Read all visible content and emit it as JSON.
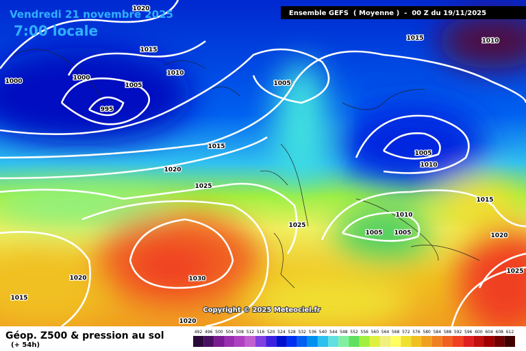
{
  "header": {
    "date": "Vendredi 21 novembre 2025",
    "time": "7:00 locale",
    "run": "Ensemble GEFS  ( Moyenne )  -  00 Z du 19/11/2025"
  },
  "isobars": {
    "labels": [
      "1020",
      "1015",
      "1010",
      "1005",
      "1000",
      "1000",
      "995",
      "1005",
      "1015",
      "1010",
      "1015",
      "1020",
      "1025",
      "1005",
      "1010",
      "1015",
      "1025",
      "1010",
      "1005",
      "1005",
      "1020",
      "1025",
      "1020",
      "1030",
      "1015",
      "1020"
    ]
  },
  "copyright": "Copyright © 2025 Meteociel.fr",
  "footer": {
    "title": "Géop. Z500 & pression au sol",
    "lead": "(+ 54h)"
  },
  "scale": {
    "labels": [
      492,
      496,
      500,
      504,
      508,
      512,
      516,
      520,
      524,
      528,
      532,
      536,
      540,
      544,
      548,
      552,
      556,
      560,
      564,
      568,
      572,
      576,
      580,
      584,
      588,
      592,
      596,
      600,
      604,
      608,
      612
    ],
    "colors": [
      "#2a0a3a",
      "#4a1060",
      "#7a1a90",
      "#9a30b0",
      "#b040c0",
      "#c060d0",
      "#8040e0",
      "#4020e0",
      "#0010d0",
      "#0030f0",
      "#0060f0",
      "#0090f0",
      "#30c0f0",
      "#60e0e0",
      "#80f0a0",
      "#60e060",
      "#a0f040",
      "#e0f040",
      "#f0f080",
      "#ffff60",
      "#f0e030",
      "#f0c020",
      "#f0a020",
      "#f08020",
      "#f06020",
      "#f04020",
      "#e02020",
      "#c01010",
      "#a00000",
      "#700000",
      "#400000"
    ]
  }
}
